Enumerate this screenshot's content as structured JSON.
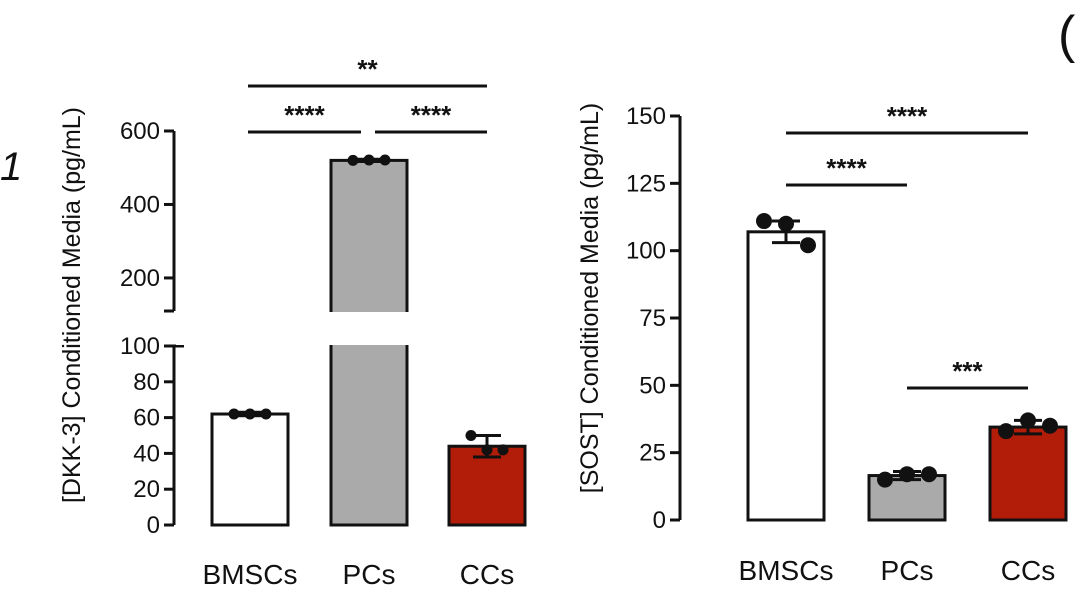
{
  "corner_marks": [
    "1",
    "("
  ],
  "chart_data": [
    {
      "type": "bar",
      "title": "",
      "ylabel": "[DKK-3] Conditioned Media (pg/mL)",
      "xlabel": "",
      "categories": [
        "BMSCs",
        "PCs",
        "CCs"
      ],
      "values": [
        62,
        520,
        44
      ],
      "errors": [
        1,
        3,
        6
      ],
      "points": [
        [
          62,
          62,
          62
        ],
        [
          520,
          521,
          521
        ],
        [
          50,
          42,
          42
        ]
      ],
      "colors": [
        "#ffffff",
        "#aaaaaa",
        "#b11d09"
      ],
      "axis_break": true,
      "ylim_lower": [
        0,
        100
      ],
      "ylim_upper": [
        110,
        600
      ],
      "yticks_lower": [
        0,
        20,
        40,
        60,
        80,
        100
      ],
      "yticks_upper": [
        200,
        400,
        600
      ],
      "ytick_labels_lower": [
        "0",
        "20",
        "40",
        "60",
        "80",
        "100"
      ],
      "ytick_labels_upper": [
        "200",
        "400",
        "600"
      ],
      "significance": [
        {
          "from": 0,
          "to": 2,
          "label": "**",
          "level": 2
        },
        {
          "from": 0,
          "to": 1,
          "label": "****",
          "level": 1
        },
        {
          "from": 1,
          "to": 2,
          "label": "****",
          "level": 1
        }
      ]
    },
    {
      "type": "bar",
      "title": "",
      "ylabel": "[SOST] Conditioned Media (pg/mL)",
      "xlabel": "",
      "categories": [
        "BMSCs",
        "PCs",
        "CCs"
      ],
      "values": [
        107,
        16.5,
        34.5
      ],
      "errors": [
        4,
        1.5,
        2.5
      ],
      "points": [
        [
          111,
          110,
          102
        ],
        [
          15,
          17,
          17
        ],
        [
          33,
          37,
          35
        ]
      ],
      "colors": [
        "#ffffff",
        "#aaaaaa",
        "#b11d09"
      ],
      "axis_break": false,
      "ylim": [
        0,
        150
      ],
      "yticks": [
        0,
        25,
        50,
        75,
        100,
        125,
        150
      ],
      "ytick_labels": [
        "0",
        "25",
        "50",
        "75",
        "100",
        "125",
        "150"
      ],
      "significance": [
        {
          "from": 0,
          "to": 2,
          "label": "****",
          "level": 3
        },
        {
          "from": 0,
          "to": 1,
          "label": "****",
          "level": 2
        },
        {
          "from": 1,
          "to": 2,
          "label": "***",
          "level": 1
        }
      ]
    }
  ]
}
